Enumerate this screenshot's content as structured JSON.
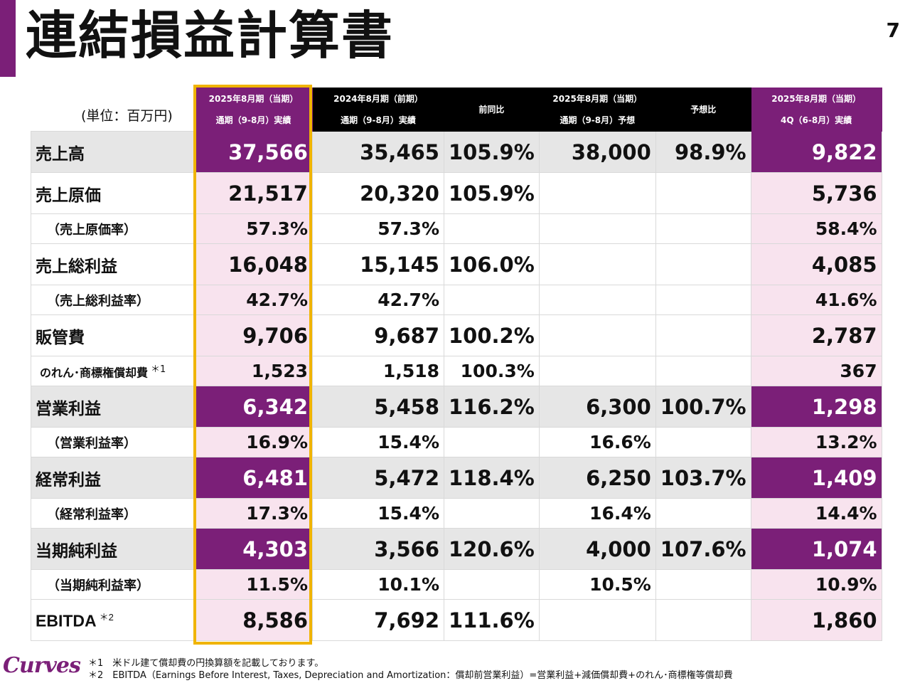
{
  "title": "連結損益計算書",
  "page_number": "7",
  "unit": "(単位：百万円)",
  "columns": [
    {
      "line1": "2025年8月期（当期）",
      "line2": "通期（9-8月）実績"
    },
    {
      "line1": "2024年8月期（前期）",
      "line2": "通期（9-8月）実績"
    },
    {
      "line1": "前同比",
      "line2": ""
    },
    {
      "line1": "2025年8月期（当期）",
      "line2": "通期（9-8月）予想"
    },
    {
      "line1": "予想比",
      "line2": ""
    },
    {
      "line1": "2025年8月期（当期）",
      "line2": "4Q（6-8月）実績"
    }
  ],
  "rows": [
    {
      "label": "売上高",
      "cur": "37,566",
      "prev": "35,465",
      "yoy": "105.9%",
      "fc": "38,000",
      "vsfc": "98.9%",
      "q4": "9,822"
    },
    {
      "label": "売上原価",
      "cur": "21,517",
      "prev": "20,320",
      "yoy": "105.9%",
      "fc": "",
      "vsfc": "",
      "q4": "5,736"
    },
    {
      "label": "（売上原価率）",
      "cur": "57.3%",
      "prev": "57.3%",
      "yoy": "",
      "fc": "",
      "vsfc": "",
      "q4": "58.4%"
    },
    {
      "label": "売上総利益",
      "cur": "16,048",
      "prev": "15,145",
      "yoy": "106.0%",
      "fc": "",
      "vsfc": "",
      "q4": "4,085"
    },
    {
      "label": "（売上総利益率）",
      "cur": "42.7%",
      "prev": "42.7%",
      "yoy": "",
      "fc": "",
      "vsfc": "",
      "q4": "41.6%"
    },
    {
      "label": "販管費",
      "cur": "9,706",
      "prev": "9,687",
      "yoy": "100.2%",
      "fc": "",
      "vsfc": "",
      "q4": "2,787"
    },
    {
      "label": "のれん･商標権償却費",
      "note": "＊1",
      "cur": "1,523",
      "prev": "1,518",
      "yoy": "100.3%",
      "fc": "",
      "vsfc": "",
      "q4": "367"
    },
    {
      "label": "営業利益",
      "cur": "6,342",
      "prev": "5,458",
      "yoy": "116.2%",
      "fc": "6,300",
      "vsfc": "100.7%",
      "q4": "1,298"
    },
    {
      "label": "（営業利益率）",
      "cur": "16.9%",
      "prev": "15.4%",
      "yoy": "",
      "fc": "16.6%",
      "vsfc": "",
      "q4": "13.2%"
    },
    {
      "label": "経常利益",
      "cur": "6,481",
      "prev": "5,472",
      "yoy": "118.4%",
      "fc": "6,250",
      "vsfc": "103.7%",
      "q4": "1,409"
    },
    {
      "label": "（経常利益率）",
      "cur": "17.3%",
      "prev": "15.4%",
      "yoy": "",
      "fc": "16.4%",
      "vsfc": "",
      "q4": "14.4%"
    },
    {
      "label": "当期純利益",
      "cur": "4,303",
      "prev": "3,566",
      "yoy": "120.6%",
      "fc": "4,000",
      "vsfc": "107.6%",
      "q4": "1,074"
    },
    {
      "label": "（当期純利益率）",
      "cur": "11.5%",
      "prev": "10.1%",
      "yoy": "",
      "fc": "10.5%",
      "vsfc": "",
      "q4": "10.9%"
    },
    {
      "label": "EBITDA",
      "note": "＊2",
      "cur": "8,586",
      "prev": "7,692",
      "yoy": "111.6%",
      "fc": "",
      "vsfc": "",
      "q4": "1,860"
    }
  ],
  "footnotes": [
    "＊1　米ドル建て償却費の円換算額を記載しております。",
    "＊2　EBITDA（Earnings Before Interest, Taxes, Depreciation and Amortization：償却前営業利益）=営業利益+減価償却費+のれん･商標権等償却費"
  ],
  "logo_text": "Curves",
  "colors": {
    "accent": "#7b1f78",
    "highlight_border": "#f0b400",
    "pink": "#f8e3ee",
    "gray": "#e6e6e6"
  }
}
